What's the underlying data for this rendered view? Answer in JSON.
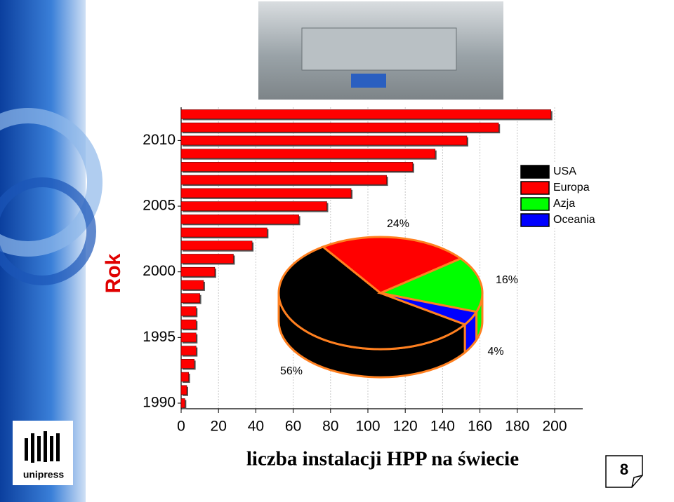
{
  "chart_data": [
    {
      "type": "bar",
      "orientation": "horizontal",
      "y_label": "Rok",
      "x_label": "liczba instalacji HPP na świecie",
      "categories": [
        "1990",
        null,
        null,
        null,
        null,
        "1995",
        null,
        null,
        null,
        null,
        "2000",
        null,
        null,
        null,
        null,
        "2005",
        null,
        null,
        null,
        null,
        "2010",
        null,
        null
      ],
      "values": [
        2,
        3,
        4,
        7,
        8,
        8,
        8,
        8,
        10,
        12,
        18,
        28,
        38,
        46,
        63,
        78,
        91,
        110,
        124,
        136,
        153,
        170,
        198
      ],
      "color": "#ff0000",
      "xlim": [
        0,
        200
      ],
      "xticks": [
        0,
        20,
        40,
        60,
        80,
        100,
        120,
        140,
        160,
        180,
        200
      ],
      "grid": true
    },
    {
      "type": "pie",
      "style": "3d",
      "categories": [
        "USA",
        "Europa",
        "Azja",
        "Oceania"
      ],
      "values": [
        56,
        24,
        16,
        4
      ],
      "value_labels": [
        "56%",
        "24%",
        "16%",
        "4%"
      ],
      "colors": [
        "#000000",
        "#ff0000",
        "#00ff00",
        "#0000ff"
      ],
      "legend": "top-right"
    }
  ],
  "logo": "unipress",
  "page_number": "8"
}
